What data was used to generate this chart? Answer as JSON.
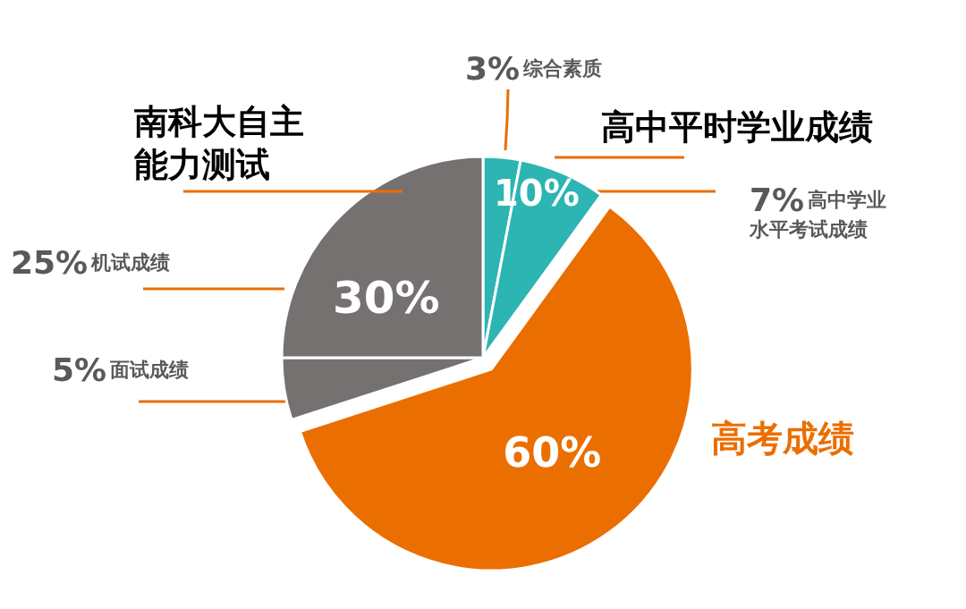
{
  "chart_data": {
    "type": "pie",
    "categories": [
      "综合素质",
      "高中学业水平考试成绩",
      "高考成绩",
      "面试成绩",
      "机试成绩"
    ],
    "values": [
      3,
      7,
      60,
      5,
      25
    ],
    "colors": [
      "#2cb5b2",
      "#2cb5b2",
      "#eb6e00",
      "#767171",
      "#767171"
    ],
    "value_labels": [
      "3%",
      "7%",
      "60%",
      "5%",
      "25%"
    ],
    "annotations": [
      "高中平时学业成绩",
      "10%",
      "南科大自主能力测试",
      "30%"
    ],
    "legend": false
  }
}
